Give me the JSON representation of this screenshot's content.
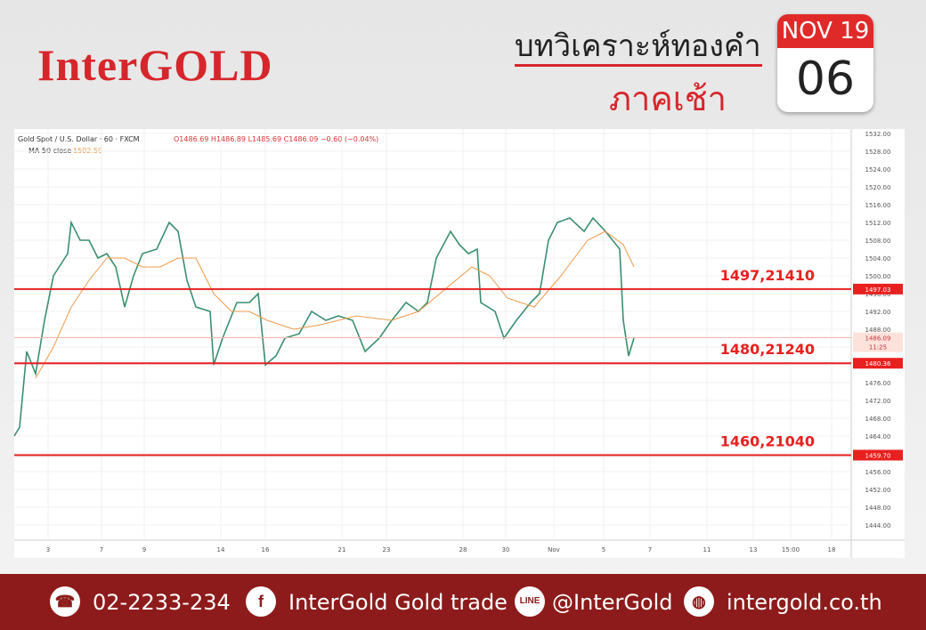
{
  "header": {
    "brand": "InterGOLD",
    "title": "บทวิเคราะห์ทองคำ",
    "subtitle": "ภาคเช้า",
    "month": "NOV 19",
    "day": "06"
  },
  "chart_data": {
    "type": "line",
    "title": "Gold Spot / U.S. Dollar · 60 · FXCM",
    "ohlc_text": "O1486.69 H1486.89 L1485.69 C1486.09 −0.60 (−0.04%)",
    "xlim": [
      0,
      470
    ],
    "xticks": [
      {
        "value": 19,
        "label": "3"
      },
      {
        "value": 49,
        "label": "7"
      },
      {
        "value": 73,
        "label": "9"
      },
      {
        "value": 116,
        "label": "14"
      },
      {
        "value": 141,
        "label": "16"
      },
      {
        "value": 184,
        "label": "21"
      },
      {
        "value": 209,
        "label": "23"
      },
      {
        "value": 252,
        "label": "28"
      },
      {
        "value": 276,
        "label": "30"
      },
      {
        "value": 303,
        "label": "Nov"
      },
      {
        "value": 331,
        "label": "5"
      },
      {
        "value": 357,
        "label": "7"
      },
      {
        "value": 389,
        "label": "11"
      },
      {
        "value": 415,
        "label": "13"
      },
      {
        "value": 436,
        "label": "15:00"
      },
      {
        "value": 459,
        "label": "18"
      }
    ],
    "ylim": [
      1444,
      1532
    ],
    "yticks": [
      {
        "value": 1532,
        "label": "1532.00"
      },
      {
        "value": 1528,
        "label": "1528.00"
      },
      {
        "value": 1524,
        "label": "1524.00"
      },
      {
        "value": 1520,
        "label": "1520.00"
      },
      {
        "value": 1516,
        "label": "1516.00"
      },
      {
        "value": 1512,
        "label": "1512.00"
      },
      {
        "value": 1508,
        "label": "1508.00"
      },
      {
        "value": 1504,
        "label": "1504.00"
      },
      {
        "value": 1500,
        "label": "1500.00"
      },
      {
        "value": 1496,
        "label": "1496.00"
      },
      {
        "value": 1492,
        "label": "1492.00"
      },
      {
        "value": 1488,
        "label": "1488.00"
      },
      {
        "value": 1484,
        "label": "1484.00"
      },
      {
        "value": 1480,
        "label": "1480.00"
      },
      {
        "value": 1476,
        "label": "1476.00"
      },
      {
        "value": 1472,
        "label": "1472.00"
      },
      {
        "value": 1468,
        "label": "1468.00"
      },
      {
        "value": 1464,
        "label": "1464.00"
      },
      {
        "value": 1460,
        "label": "1460.00"
      },
      {
        "value": 1456,
        "label": "1456.00"
      },
      {
        "value": 1452,
        "label": "1452.00"
      },
      {
        "value": 1448,
        "label": "1448.00"
      },
      {
        "value": 1444,
        "label": "1444.00"
      }
    ],
    "grid": true,
    "series": [
      {
        "name": "Gold Spot / U.S. Dollar",
        "color": "#3a8f6e",
        "x": [
          0,
          3,
          7,
          12,
          17,
          22,
          30,
          32,
          37,
          42,
          47,
          52,
          57,
          62,
          67,
          72,
          80,
          87,
          92,
          97,
          102,
          110,
          112,
          117,
          125,
          132,
          137,
          141,
          147,
          152,
          160,
          167,
          175,
          182,
          190,
          197,
          205,
          212,
          220,
          227,
          232,
          237,
          245,
          250,
          255,
          260,
          262,
          270,
          275,
          282,
          290,
          295,
          300,
          305,
          312,
          320,
          325,
          332,
          340,
          342,
          345,
          348
        ],
        "values": [
          1464,
          1466,
          1483,
          1478,
          1490,
          1500,
          1505,
          1512,
          1508,
          1508,
          1504,
          1505,
          1502,
          1493,
          1500,
          1505,
          1506,
          1512,
          1510,
          1499,
          1493,
          1492,
          1480,
          1486,
          1494,
          1494,
          1496,
          1480,
          1482,
          1486,
          1487,
          1492,
          1490,
          1491,
          1490,
          1483,
          1486,
          1490,
          1494,
          1492,
          1494,
          1504,
          1510,
          1507,
          1505,
          1506,
          1494,
          1492,
          1486,
          1490,
          1494,
          1496,
          1508,
          1512,
          1513,
          1510,
          1513,
          1510,
          1506,
          1490,
          1482,
          1486
        ]
      },
      {
        "name": "MA 50 close",
        "color": "#f29a4a",
        "value_label": "1502.59",
        "x": [
          12,
          22,
          32,
          42,
          52,
          62,
          72,
          82,
          92,
          102,
          112,
          122,
          132,
          142,
          157,
          172,
          192,
          212,
          227,
          242,
          257,
          267,
          277,
          292,
          307,
          322,
          332,
          342,
          348
        ],
        "values": [
          1477,
          1484,
          1493,
          1499,
          1504,
          1504,
          1502,
          1502,
          1504,
          1504,
          1496,
          1492,
          1492,
          1490,
          1488,
          1489,
          1491,
          1490,
          1492,
          1497,
          1502,
          1500,
          1495,
          1493,
          1500,
          1508,
          1510,
          1507,
          1502
        ]
      }
    ],
    "levels": [
      {
        "name": "1497,21410",
        "value": 1497.03,
        "value_label": "1497.03"
      },
      {
        "name": "1480,21240",
        "value": 1480.36,
        "value_label": "1480.36"
      },
      {
        "name": "1460,21040",
        "value": 1459.7,
        "value_label": "1459.70"
      }
    ],
    "last_price": {
      "value": 1486.09,
      "label": "1486.09",
      "countdown": "11:25"
    }
  },
  "footer": {
    "phone": "02-2233-234",
    "facebook": "InterGold Gold trade",
    "line": "@InterGold",
    "web": "intergold.co.th"
  }
}
